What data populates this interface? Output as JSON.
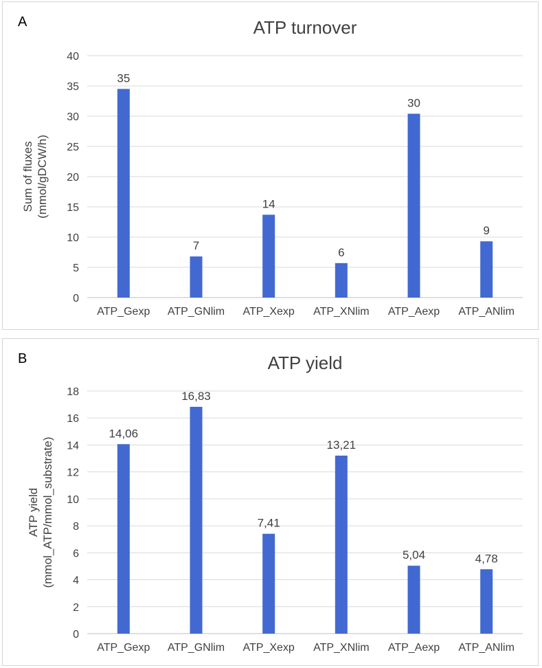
{
  "chart_data": [
    {
      "type": "bar",
      "panel_label": "A",
      "title": "ATP turnover",
      "ylabel": "Sum of fluxes\n(mmol/gDCW/h)",
      "categories": [
        "ATP_Gexp",
        "ATP_GNlim",
        "ATP_Xexp",
        "ATP_XNlim",
        "ATP_Aexp",
        "ATP_ANlim"
      ],
      "values": [
        34.5,
        6.8,
        13.7,
        5.7,
        30.4,
        9.3
      ],
      "data_labels": [
        "35",
        "7",
        "14",
        "6",
        "30",
        "9"
      ],
      "ylim": [
        0,
        40
      ],
      "yticks": [
        "0",
        "5",
        "10",
        "15",
        "20",
        "25",
        "30",
        "35",
        "40"
      ],
      "grid": true,
      "bar_color": "#4169d1"
    },
    {
      "type": "bar",
      "panel_label": "B",
      "title": "ATP yield",
      "ylabel": "ATP yield\n(mmol_ATP/mmol_substrate)",
      "categories": [
        "ATP_Gexp",
        "ATP_GNlim",
        "ATP_Xexp",
        "ATP_XNlim",
        "ATP_Aexp",
        "ATP_ANlim"
      ],
      "values": [
        14.06,
        16.83,
        7.41,
        13.21,
        5.04,
        4.78
      ],
      "data_labels": [
        "14,06",
        "16,83",
        "7,41",
        "13,21",
        "5,04",
        "4,78"
      ],
      "ylim": [
        0,
        18
      ],
      "yticks": [
        "0",
        "2",
        "4",
        "6",
        "8",
        "10",
        "12",
        "14",
        "16",
        "18"
      ],
      "grid": true,
      "bar_color": "#4169d1"
    }
  ]
}
